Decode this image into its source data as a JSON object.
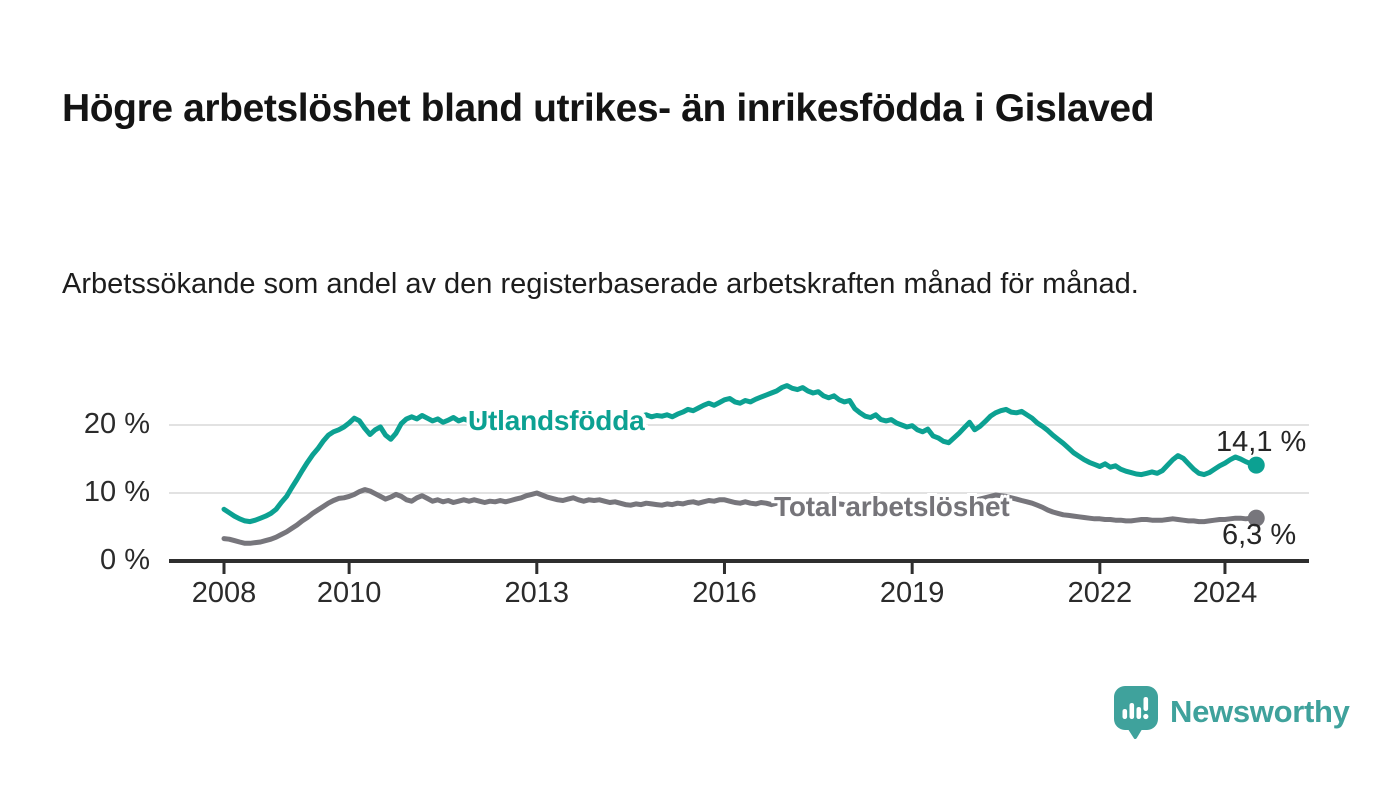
{
  "title": "Högre arbetslöshet bland utrikes- än inrikesfödda i Gislaved",
  "subtitle": "Arbetssökande som andel av den registerbaserade arbetskraften månad för månad.",
  "branding": {
    "logo_text": "Newsworthy",
    "logo_icon": "speech-bubble-bar-chart-icon"
  },
  "colors": {
    "foreign_born": "#0ca192",
    "total": "#77767c",
    "grid": "#d8d8d8",
    "axis": "#2e2e2e",
    "logo_teal": "#3fa29c",
    "text_dark": "#141414"
  },
  "chart_data": {
    "type": "line",
    "x_unit": "year (monthly values)",
    "xlim": [
      2007.1,
      2025.35
    ],
    "ylim": [
      0,
      28
    ],
    "grid": "horizontal gridlines at 10 and 20",
    "legend_position": "inline labels on lines, end values at right",
    "y_ticks": [
      {
        "value": 0,
        "label": "0 %"
      },
      {
        "value": 10,
        "label": "10 %"
      },
      {
        "value": 20,
        "label": "20 %"
      }
    ],
    "x_ticks": [
      {
        "value": 2008,
        "label": "2008"
      },
      {
        "value": 2010,
        "label": "2010"
      },
      {
        "value": 2013,
        "label": "2013"
      },
      {
        "value": 2016,
        "label": "2016"
      },
      {
        "value": 2019,
        "label": "2019"
      },
      {
        "value": 2022,
        "label": "2022"
      },
      {
        "value": 2024,
        "label": "2024"
      }
    ],
    "series": [
      {
        "name": "Utlandsfödda",
        "color": "#0ca192",
        "end_label": "14,1 %",
        "end_value": 14.1,
        "start_year": 2008.0,
        "step_years": 0.0833333,
        "values": [
          7.6,
          7.1,
          6.6,
          6.2,
          5.9,
          5.8,
          6.0,
          6.3,
          6.6,
          7.0,
          7.6,
          8.6,
          9.5,
          10.8,
          12.0,
          13.3,
          14.5,
          15.6,
          16.5,
          17.6,
          18.5,
          19.0,
          19.3,
          19.7,
          20.3,
          21.0,
          20.6,
          19.5,
          18.6,
          19.3,
          19.7,
          18.5,
          17.9,
          18.8,
          20.2,
          20.9,
          21.2,
          20.9,
          21.4,
          21.0,
          20.6,
          20.9,
          20.4,
          20.7,
          21.1,
          20.6,
          20.9,
          20.6,
          20.8,
          20.5,
          20.9,
          20.6,
          20.3,
          20.6,
          20.4,
          20.7,
          20.5,
          20.8,
          20.6,
          20.9,
          20.7,
          21.0,
          20.8,
          20.6,
          20.9,
          20.7,
          21.0,
          20.8,
          21.1,
          20.9,
          21.2,
          21.0,
          21.2,
          20.9,
          21.1,
          21.3,
          21.0,
          21.2,
          21.4,
          21.1,
          21.3,
          21.5,
          21.2,
          21.4,
          21.3,
          21.5,
          21.2,
          21.6,
          21.9,
          22.3,
          22.1,
          22.5,
          22.9,
          23.2,
          22.9,
          23.3,
          23.7,
          23.9,
          23.4,
          23.2,
          23.6,
          23.4,
          23.8,
          24.1,
          24.4,
          24.7,
          25.0,
          25.5,
          25.8,
          25.4,
          25.2,
          25.5,
          25.0,
          24.7,
          24.9,
          24.3,
          24.0,
          24.3,
          23.7,
          23.4,
          23.6,
          22.4,
          21.8,
          21.3,
          21.1,
          21.5,
          20.8,
          20.6,
          20.8,
          20.3,
          20.0,
          19.7,
          19.9,
          19.3,
          19.0,
          19.4,
          18.4,
          18.1,
          17.6,
          17.4,
          18.1,
          18.8,
          19.6,
          20.4,
          19.3,
          19.8,
          20.5,
          21.3,
          21.8,
          22.1,
          22.3,
          21.9,
          21.8,
          22.0,
          21.5,
          21.0,
          20.3,
          19.8,
          19.2,
          18.5,
          17.9,
          17.3,
          16.6,
          15.9,
          15.4,
          14.9,
          14.5,
          14.2,
          13.9,
          14.3,
          13.8,
          14.0,
          13.5,
          13.2,
          13.0,
          12.8,
          12.7,
          12.9,
          13.1,
          12.9,
          13.3,
          14.1,
          14.9,
          15.5,
          15.1,
          14.3,
          13.5,
          12.9,
          12.7,
          13.0,
          13.5,
          14.0,
          14.4,
          14.9,
          15.3,
          15.0,
          14.6,
          14.3,
          14.1
        ]
      },
      {
        "name": "Total arbetslöshet",
        "color": "#77767c",
        "end_label": "6,3 %",
        "end_value": 6.3,
        "start_year": 2008.0,
        "step_years": 0.0833333,
        "values": [
          3.3,
          3.2,
          3.0,
          2.8,
          2.6,
          2.6,
          2.7,
          2.8,
          3.0,
          3.2,
          3.5,
          3.9,
          4.3,
          4.8,
          5.3,
          5.9,
          6.4,
          7.0,
          7.5,
          8.0,
          8.5,
          8.9,
          9.2,
          9.3,
          9.5,
          9.8,
          10.2,
          10.5,
          10.3,
          9.9,
          9.5,
          9.1,
          9.4,
          9.8,
          9.5,
          9.0,
          8.8,
          9.3,
          9.6,
          9.2,
          8.8,
          9.0,
          8.7,
          8.9,
          8.6,
          8.8,
          9.0,
          8.8,
          9.0,
          8.8,
          8.6,
          8.8,
          8.7,
          8.9,
          8.7,
          8.9,
          9.1,
          9.3,
          9.6,
          9.8,
          10.0,
          9.7,
          9.4,
          9.2,
          9.0,
          8.9,
          9.1,
          9.3,
          9.0,
          8.8,
          9.0,
          8.9,
          9.0,
          8.8,
          8.6,
          8.7,
          8.5,
          8.3,
          8.2,
          8.4,
          8.3,
          8.5,
          8.4,
          8.3,
          8.2,
          8.4,
          8.3,
          8.5,
          8.4,
          8.6,
          8.7,
          8.5,
          8.7,
          8.9,
          8.8,
          9.0,
          9.0,
          8.8,
          8.6,
          8.5,
          8.7,
          8.5,
          8.4,
          8.6,
          8.5,
          8.3,
          8.5,
          8.6,
          8.7,
          8.5,
          8.4,
          8.6,
          8.4,
          8.2,
          8.3,
          8.1,
          8.3,
          8.2,
          8.4,
          8.3,
          8.2,
          8.0,
          8.1,
          7.9,
          8.1,
          8.2,
          8.0,
          8.2,
          8.3,
          8.2,
          8.4,
          8.5,
          8.6,
          8.4,
          8.3,
          8.4,
          8.2,
          8.3,
          8.5,
          8.4,
          8.6,
          8.5,
          8.7,
          8.8,
          8.9,
          9.1,
          9.3,
          9.5,
          9.7,
          9.6,
          9.5,
          9.3,
          9.1,
          8.9,
          8.7,
          8.5,
          8.2,
          7.9,
          7.5,
          7.2,
          7.0,
          6.8,
          6.7,
          6.6,
          6.5,
          6.4,
          6.3,
          6.2,
          6.2,
          6.1,
          6.1,
          6.0,
          6.0,
          5.9,
          5.9,
          6.0,
          6.1,
          6.1,
          6.0,
          6.0,
          6.0,
          6.1,
          6.2,
          6.1,
          6.0,
          5.9,
          5.9,
          5.8,
          5.8,
          5.9,
          6.0,
          6.1,
          6.1,
          6.2,
          6.3,
          6.3,
          6.2,
          6.3,
          6.3
        ]
      }
    ]
  }
}
